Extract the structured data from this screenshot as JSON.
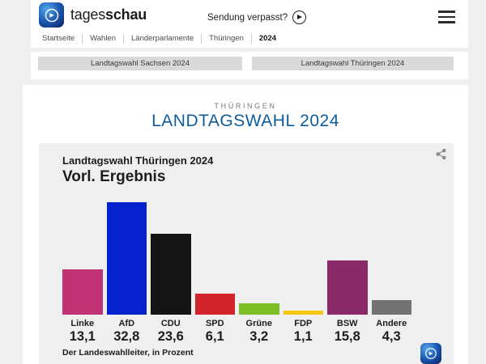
{
  "header": {
    "brand_regular": "tages",
    "brand_bold": "schau",
    "watch_label": "Sendung verpasst?"
  },
  "breadcrumb": {
    "items": [
      "Startseite",
      "Wahlen",
      "Länderparlamente",
      "Thüringen",
      "2024"
    ]
  },
  "tabs": [
    {
      "label": "Landtagswahl Sachsen 2024"
    },
    {
      "label": "Landtagswahl Thüringen 2024"
    }
  ],
  "main": {
    "kicker": "THÜRINGEN",
    "title": "LANDTAGSWAHL 2024"
  },
  "chart": {
    "subtitle": "Landtagswahl Thüringen 2024",
    "title": "Vorl. Ergebnis",
    "source": "Der Landeswahlleiter, in Prozent"
  },
  "chart_data": {
    "type": "bar",
    "title": "Vorl. Ergebnis",
    "subtitle": "Landtagswahl Thüringen 2024",
    "categories": [
      "Linke",
      "AfD",
      "CDU",
      "SPD",
      "Grüne",
      "FDP",
      "BSW",
      "Andere"
    ],
    "values": [
      13.1,
      32.8,
      23.6,
      6.1,
      3.2,
      1.1,
      15.8,
      4.3
    ],
    "value_labels": [
      "13,1",
      "32,8",
      "23,6",
      "6,1",
      "3,2",
      "1,1",
      "15,8",
      "4,3"
    ],
    "colors": [
      "#bf3375",
      "#0422cd",
      "#141414",
      "#d3232a",
      "#7dbe24",
      "#f6c813",
      "#8b2a68",
      "#727272"
    ],
    "unit": "Prozent",
    "ylim": [
      0,
      35
    ],
    "grid": false,
    "legend": "none",
    "source": "Der Landeswahlleiter, in Prozent"
  },
  "icons": {
    "play": "play-icon",
    "hamburger": "hamburger-menu-icon",
    "share": "share-icon",
    "ard_globe": "ard-globe-logo-icon"
  },
  "colors": {
    "accent_blue": "#0d5c9b",
    "page_background": "#efefef",
    "card_background": "#efefef",
    "button_gray": "#d9d9d9"
  }
}
